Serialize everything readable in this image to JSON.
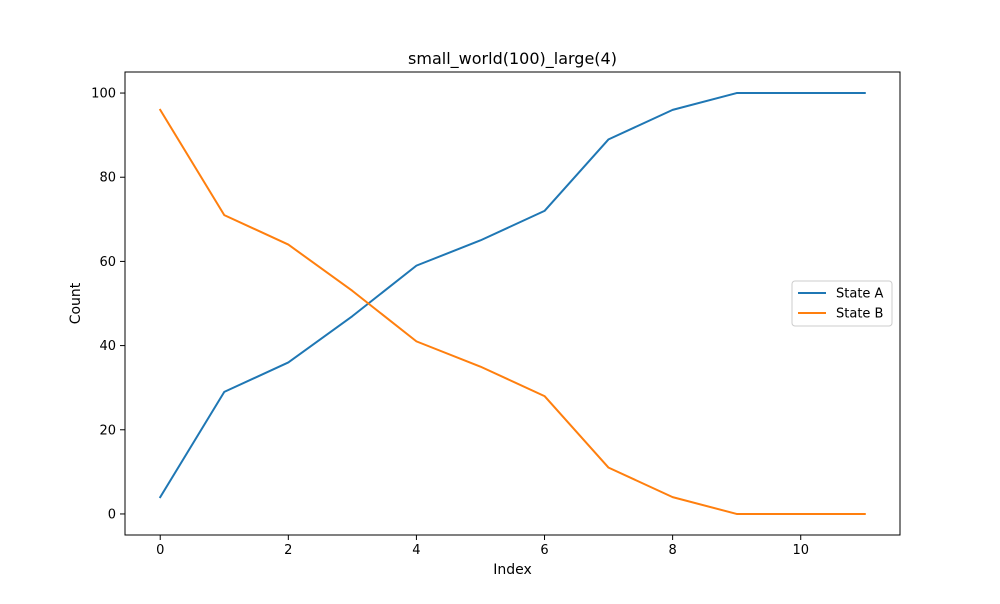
{
  "chart_data": {
    "type": "line",
    "title": "small_world(100)_large(4)",
    "xlabel": "Index",
    "ylabel": "Count",
    "x": [
      0,
      1,
      2,
      3,
      4,
      5,
      6,
      7,
      8,
      9,
      10,
      11
    ],
    "xlim": [
      -0.55,
      11.55
    ],
    "ylim": [
      -5,
      105
    ],
    "xticks": [
      0,
      2,
      4,
      6,
      8,
      10
    ],
    "yticks": [
      0,
      20,
      40,
      60,
      80,
      100
    ],
    "grid": false,
    "legend_position": "center right",
    "series": [
      {
        "name": "State A",
        "color": "#1f77b4",
        "values": [
          4,
          29,
          36,
          47,
          59,
          65,
          72,
          89,
          96,
          100,
          100,
          100
        ]
      },
      {
        "name": "State B",
        "color": "#ff7f0e",
        "values": [
          96,
          71,
          64,
          53,
          41,
          35,
          28,
          11,
          4,
          0,
          0,
          0
        ]
      }
    ]
  }
}
